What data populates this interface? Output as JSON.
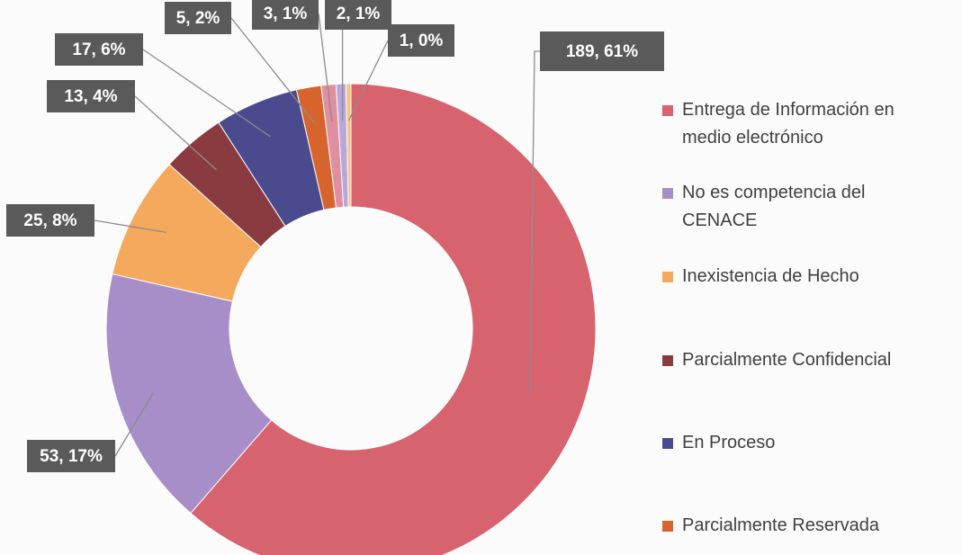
{
  "chart_data": {
    "type": "donut",
    "categories": [
      "Entrega de Información en medio electrónico",
      "No es competencia del CENACE",
      "Inexistencia de Hecho",
      "Parcialmente Confidencial",
      "En Proceso",
      "Parcialmente Reservada",
      null,
      null,
      null
    ],
    "values": [
      189,
      53,
      25,
      13,
      17,
      5,
      3,
      2,
      1
    ],
    "value_labels": [
      "189, 61%",
      "53, 17%",
      "25, 8%",
      "13, 4%",
      "17, 6%",
      "5, 2%",
      "3, 1%",
      "2, 1%",
      "1, 0%"
    ],
    "colors": [
      "#d6636e",
      "#a78ec8",
      "#f4a95c",
      "#8a3b40",
      "#4a4a8e",
      "#d6642c",
      "#e08fa1",
      "#b8a7da",
      "#f6c47c"
    ]
  }
}
